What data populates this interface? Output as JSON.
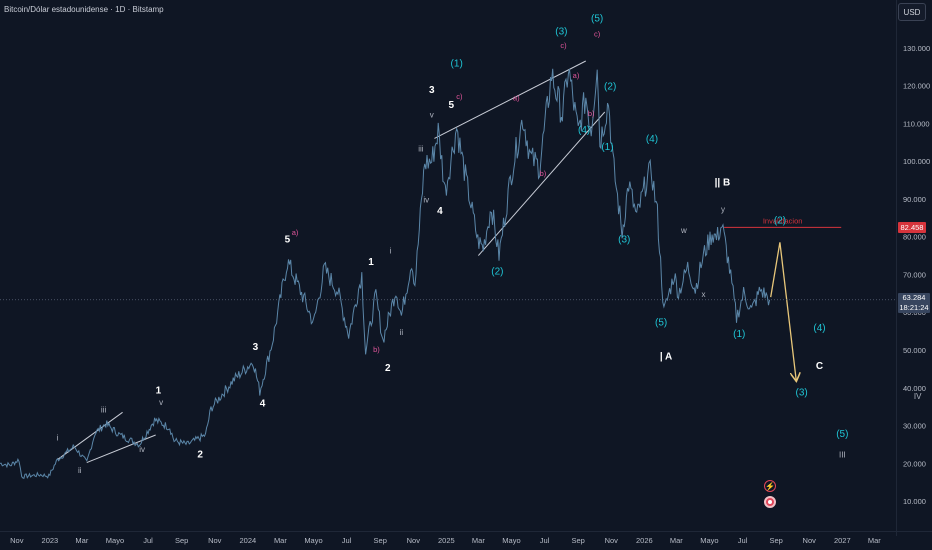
{
  "header": {
    "title": "Bitcoin/Dólar estadounidense · 1D · Bitstamp",
    "currency": "USD"
  },
  "last_price": {
    "value": "63.284",
    "countdown": "18:21:24"
  },
  "invalidation": {
    "label": "Invalidacion",
    "price_label": "82.458",
    "value": 82458
  },
  "colors": {
    "background": "#0f1624",
    "price_line": "#5b86a8",
    "white_labels": "#ffffff",
    "cyan_labels": "#1fc4d4",
    "pink_labels": "#e0559a",
    "roman_labels": "#b0b5c0",
    "invalidation": "#d6343c",
    "projection": "#e8c77a",
    "trendlines": "#c8ccd6"
  },
  "events": {
    "icon_a": "lightning-icon",
    "icon_b": "dividend-icon"
  },
  "chart_data": {
    "type": "line",
    "title": "Bitcoin/Dólar estadounidense · 1D · Bitstamp",
    "y_axis": {
      "ticks": [
        10000,
        20000,
        30000,
        40000,
        50000,
        60000,
        70000,
        80000,
        90000,
        100000,
        110000,
        120000,
        130000
      ],
      "tick_labels": [
        "10.000",
        "20.000",
        "30.000",
        "40.000",
        "50.000",
        "60.000",
        "70.000",
        "80.000",
        "90.000",
        "100.000",
        "110.000",
        "120.000",
        "130.000"
      ],
      "range": [
        5000,
        140000
      ],
      "position": "right"
    },
    "x_axis": {
      "labels": [
        "Nov",
        "2023",
        "Mar",
        "Mayo",
        "Jul",
        "Sep",
        "Nov",
        "2024",
        "Mar",
        "Mayo",
        "Jul",
        "Sep",
        "Nov",
        "2025",
        "Mar",
        "Mayo",
        "Jul",
        "Sep",
        "Nov",
        "2026",
        "Mar",
        "Mayo",
        "Jul",
        "Sep",
        "Nov",
        "2027",
        "Mar"
      ],
      "range": [
        "2022-10-01",
        "2027-04-10"
      ]
    },
    "grid": false,
    "series": [
      {
        "points": [
          [
            "2022-10-01",
            20000
          ],
          [
            "2022-10-20",
            19500
          ],
          [
            "2022-11-05",
            21000
          ],
          [
            "2022-11-10",
            16500
          ],
          [
            "2022-12-15",
            17000
          ],
          [
            "2022-12-30",
            16600
          ],
          [
            "2023-01-15",
            21000
          ],
          [
            "2023-02-15",
            24500
          ],
          [
            "2023-03-10",
            20200
          ],
          [
            "2023-03-25",
            28000
          ],
          [
            "2023-04-14",
            30500
          ],
          [
            "2023-05-10",
            27500
          ],
          [
            "2023-06-15",
            25000
          ],
          [
            "2023-07-13",
            31500
          ],
          [
            "2023-08-10",
            29500
          ],
          [
            "2023-08-18",
            26000
          ],
          [
            "2023-09-11",
            25000
          ],
          [
            "2023-10-15",
            27500
          ],
          [
            "2023-10-25",
            34500
          ],
          [
            "2023-12-05",
            42000
          ],
          [
            "2024-01-11",
            47000
          ],
          [
            "2024-01-23",
            39000
          ],
          [
            "2024-02-15",
            52000
          ],
          [
            "2024-03-14",
            73500
          ],
          [
            "2024-04-15",
            63000
          ],
          [
            "2024-05-01",
            57000
          ],
          [
            "2024-05-21",
            71500
          ],
          [
            "2024-06-15",
            65500
          ],
          [
            "2024-07-05",
            54000
          ],
          [
            "2024-07-29",
            70000
          ],
          [
            "2024-08-05",
            49500
          ],
          [
            "2024-08-24",
            64500
          ],
          [
            "2024-09-06",
            52500
          ],
          [
            "2024-09-30",
            66000
          ],
          [
            "2024-10-10",
            59000
          ],
          [
            "2024-10-29",
            73500
          ],
          [
            "2024-11-04",
            67500
          ],
          [
            "2024-11-22",
            99500
          ],
          [
            "2024-12-05",
            100000
          ],
          [
            "2024-12-17",
            108000
          ],
          [
            "2024-12-30",
            92000
          ],
          [
            "2025-01-20",
            109000
          ],
          [
            "2025-02-05",
            96000
          ],
          [
            "2025-02-28",
            79000
          ],
          [
            "2025-03-10",
            77000
          ],
          [
            "2025-03-25",
            88000
          ],
          [
            "2025-04-08",
            75000
          ],
          [
            "2025-05-01",
            97000
          ],
          [
            "2025-05-22",
            111500
          ],
          [
            "2025-06-05",
            101000
          ],
          [
            "2025-06-22",
            98500
          ],
          [
            "2025-07-14",
            123000
          ],
          [
            "2025-08-03",
            112000
          ],
          [
            "2025-08-14",
            124500
          ],
          [
            "2025-09-01",
            107500
          ],
          [
            "2025-09-15",
            117000
          ],
          [
            "2025-09-25",
            108500
          ],
          [
            "2025-10-06",
            126200
          ],
          [
            "2025-10-11",
            105000
          ],
          [
            "2025-10-27",
            116000
          ],
          [
            "2025-11-04",
            100000
          ],
          [
            "2025-11-21",
            81000
          ],
          [
            "2025-12-03",
            94000
          ],
          [
            "2025-12-18",
            85000
          ],
          [
            "2026-01-05",
            95000
          ],
          [
            "2026-01-14",
            97500
          ],
          [
            "2026-01-25",
            86000
          ],
          [
            "2026-02-06",
            60000
          ],
          [
            "2026-02-25",
            70000
          ],
          [
            "2026-03-05",
            65000
          ],
          [
            "2026-03-22",
            72000
          ],
          [
            "2026-04-05",
            66000
          ],
          [
            "2026-04-20",
            75000
          ],
          [
            "2026-05-06",
            81000
          ],
          [
            "2026-05-14",
            79500
          ],
          [
            "2026-05-24",
            83000
          ],
          [
            "2026-06-05",
            73500
          ],
          [
            "2026-06-20",
            58500
          ],
          [
            "2026-07-03",
            65000
          ],
          [
            "2026-07-18",
            60500
          ],
          [
            "2026-08-03",
            66000
          ],
          [
            "2026-08-20",
            63300
          ]
        ]
      }
    ],
    "projection": {
      "points": [
        [
          "2026-08-22",
          64000
        ],
        [
          "2026-09-08",
          78500
        ],
        [
          "2026-10-08",
          42000
        ]
      ]
    },
    "trendlines": [
      {
        "points": [
          [
            "2023-01-15",
            21000
          ],
          [
            "2023-05-15",
            33500
          ]
        ]
      },
      {
        "points": [
          [
            "2023-03-10",
            20200
          ],
          [
            "2023-07-15",
            27500
          ]
        ]
      },
      {
        "points": [
          [
            "2024-12-10",
            106000
          ],
          [
            "2025-09-15",
            126500
          ]
        ]
      },
      {
        "points": [
          [
            "2025-03-01",
            75000
          ],
          [
            "2025-10-20",
            113000
          ]
        ]
      }
    ],
    "annotations": [
      {
        "text": "i",
        "x": "2023-01-15",
        "y": 26000,
        "color": "roman"
      },
      {
        "text": "ii",
        "x": "2023-02-25",
        "y": 17500,
        "color": "roman"
      },
      {
        "text": "iii",
        "x": "2023-04-10",
        "y": 33500,
        "color": "roman"
      },
      {
        "text": "iv",
        "x": "2023-06-20",
        "y": 23000,
        "color": "roman"
      },
      {
        "text": "v",
        "x": "2023-07-25",
        "y": 35500,
        "color": "roman"
      },
      {
        "text": "1",
        "x": "2023-07-20",
        "y": 38500,
        "color": "white"
      },
      {
        "text": "2",
        "x": "2023-10-05",
        "y": 21500,
        "color": "white"
      },
      {
        "text": "3",
        "x": "2024-01-15",
        "y": 50000,
        "color": "white"
      },
      {
        "text": "4",
        "x": "2024-01-28",
        "y": 35000,
        "color": "white"
      },
      {
        "text": "5",
        "x": "2024-03-14",
        "y": 78500,
        "color": "white"
      },
      {
        "text": "a)",
        "x": "2024-03-28",
        "y": 80500,
        "color": "pink"
      },
      {
        "text": "1",
        "x": "2024-08-15",
        "y": 72500,
        "color": "white"
      },
      {
        "text": "i",
        "x": "2024-09-20",
        "y": 75500,
        "color": "roman"
      },
      {
        "text": "b)",
        "x": "2024-08-25",
        "y": 49500,
        "color": "pink"
      },
      {
        "text": "2",
        "x": "2024-09-15",
        "y": 44500,
        "color": "white"
      },
      {
        "text": "ii",
        "x": "2024-10-10",
        "y": 54000,
        "color": "roman"
      },
      {
        "text": "iii",
        "x": "2024-11-15",
        "y": 102500,
        "color": "roman"
      },
      {
        "text": "iv",
        "x": "2024-11-25",
        "y": 89000,
        "color": "roman"
      },
      {
        "text": "3",
        "x": "2024-12-05",
        "y": 118000,
        "color": "white"
      },
      {
        "text": "4",
        "x": "2024-12-20",
        "y": 86000,
        "color": "white"
      },
      {
        "text": "v",
        "x": "2024-12-05",
        "y": 111500,
        "color": "roman"
      },
      {
        "text": "5",
        "x": "2025-01-10",
        "y": 114000,
        "color": "white"
      },
      {
        "text": "c)",
        "x": "2025-01-25",
        "y": 116500,
        "color": "pink"
      },
      {
        "text": "(1)",
        "x": "2025-01-20",
        "y": 125000,
        "color": "cyan"
      },
      {
        "text": "(2)",
        "x": "2025-04-05",
        "y": 70000,
        "color": "cyan"
      },
      {
        "text": "a)",
        "x": "2025-05-10",
        "y": 116000,
        "color": "pink"
      },
      {
        "text": "b)",
        "x": "2025-06-28",
        "y": 96000,
        "color": "pink"
      },
      {
        "text": "(3)",
        "x": "2025-08-01",
        "y": 133500,
        "color": "cyan"
      },
      {
        "text": "c)",
        "x": "2025-08-05",
        "y": 130000,
        "color": "pink"
      },
      {
        "text": "a)",
        "x": "2025-08-28",
        "y": 122000,
        "color": "pink"
      },
      {
        "text": "b)",
        "x": "2025-09-25",
        "y": 112000,
        "color": "pink"
      },
      {
        "text": "(4)",
        "x": "2025-09-12",
        "y": 107500,
        "color": "cyan"
      },
      {
        "text": "(5)",
        "x": "2025-10-06",
        "y": 137000,
        "color": "cyan"
      },
      {
        "text": "c)",
        "x": "2025-10-06",
        "y": 133000,
        "color": "pink"
      },
      {
        "text": "(2)",
        "x": "2025-10-30",
        "y": 119000,
        "color": "cyan"
      },
      {
        "text": "(1)",
        "x": "2025-10-25",
        "y": 103000,
        "color": "cyan"
      },
      {
        "text": "(3)",
        "x": "2025-11-25",
        "y": 78500,
        "color": "cyan"
      },
      {
        "text": "(4)",
        "x": "2026-01-15",
        "y": 105000,
        "color": "cyan"
      },
      {
        "text": "(5)",
        "x": "2026-02-01",
        "y": 56500,
        "color": "cyan"
      },
      {
        "text": "| A",
        "x": "2026-02-10",
        "y": 47500,
        "color": "white"
      },
      {
        "text": "|| B",
        "x": "2026-05-25",
        "y": 93500,
        "color": "white"
      },
      {
        "text": "w",
        "x": "2026-03-15",
        "y": 81000,
        "color": "roman"
      },
      {
        "text": "x",
        "x": "2026-04-20",
        "y": 64000,
        "color": "roman"
      },
      {
        "text": "y",
        "x": "2026-05-26",
        "y": 86500,
        "color": "roman"
      },
      {
        "text": "(1)",
        "x": "2026-06-25",
        "y": 53500,
        "color": "cyan"
      },
      {
        "text": "(2)",
        "x": "2026-09-08",
        "y": 83500,
        "color": "cyan"
      },
      {
        "text": "(4)",
        "x": "2026-11-20",
        "y": 55000,
        "color": "cyan"
      },
      {
        "text": "C",
        "x": "2026-11-20",
        "y": 45000,
        "color": "white"
      },
      {
        "text": "(3)",
        "x": "2026-10-18",
        "y": 38000,
        "color": "cyan"
      },
      {
        "text": "IV",
        "x": "2027-05-20",
        "y": 37000,
        "color": "roman"
      },
      {
        "text": "(5)",
        "x": "2027-01-01",
        "y": 27000,
        "color": "cyan"
      },
      {
        "text": "III",
        "x": "2027-01-01",
        "y": 21500,
        "color": "roman"
      }
    ]
  }
}
